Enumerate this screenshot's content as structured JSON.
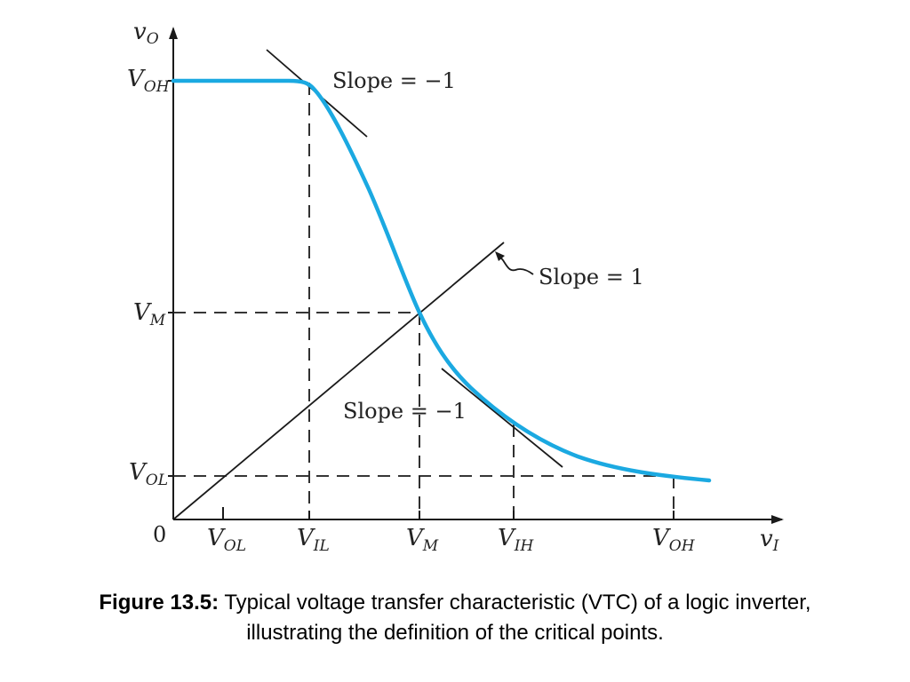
{
  "figure": {
    "y_axis_label": {
      "main": "v",
      "sub": "O"
    },
    "x_axis_label": {
      "main": "v",
      "sub": "I"
    },
    "origin_label": "0",
    "y_ticks": [
      {
        "id": "voh",
        "main": "V",
        "sub": "OH"
      },
      {
        "id": "vm",
        "main": "V",
        "sub": "M"
      },
      {
        "id": "vol",
        "main": "V",
        "sub": "OL"
      }
    ],
    "x_ticks": [
      {
        "id": "vol",
        "main": "V",
        "sub": "OL"
      },
      {
        "id": "vil",
        "main": "V",
        "sub": "IL"
      },
      {
        "id": "vm",
        "main": "V",
        "sub": "M"
      },
      {
        "id": "vih",
        "main": "V",
        "sub": "IH"
      },
      {
        "id": "voh",
        "main": "V",
        "sub": "OH"
      }
    ],
    "annotations": {
      "slope_top": "Slope = −1",
      "slope_unity": "Slope = 1",
      "slope_bottom": "Slope = −1"
    },
    "colors": {
      "curve": "#1BA9E1",
      "lines": "#1a1a1a"
    }
  },
  "caption": {
    "label": "Figure 13.5:",
    "text": " Typical voltage transfer characteristic (VTC) of a logic inverter, illustrating the definition of the critical points."
  }
}
